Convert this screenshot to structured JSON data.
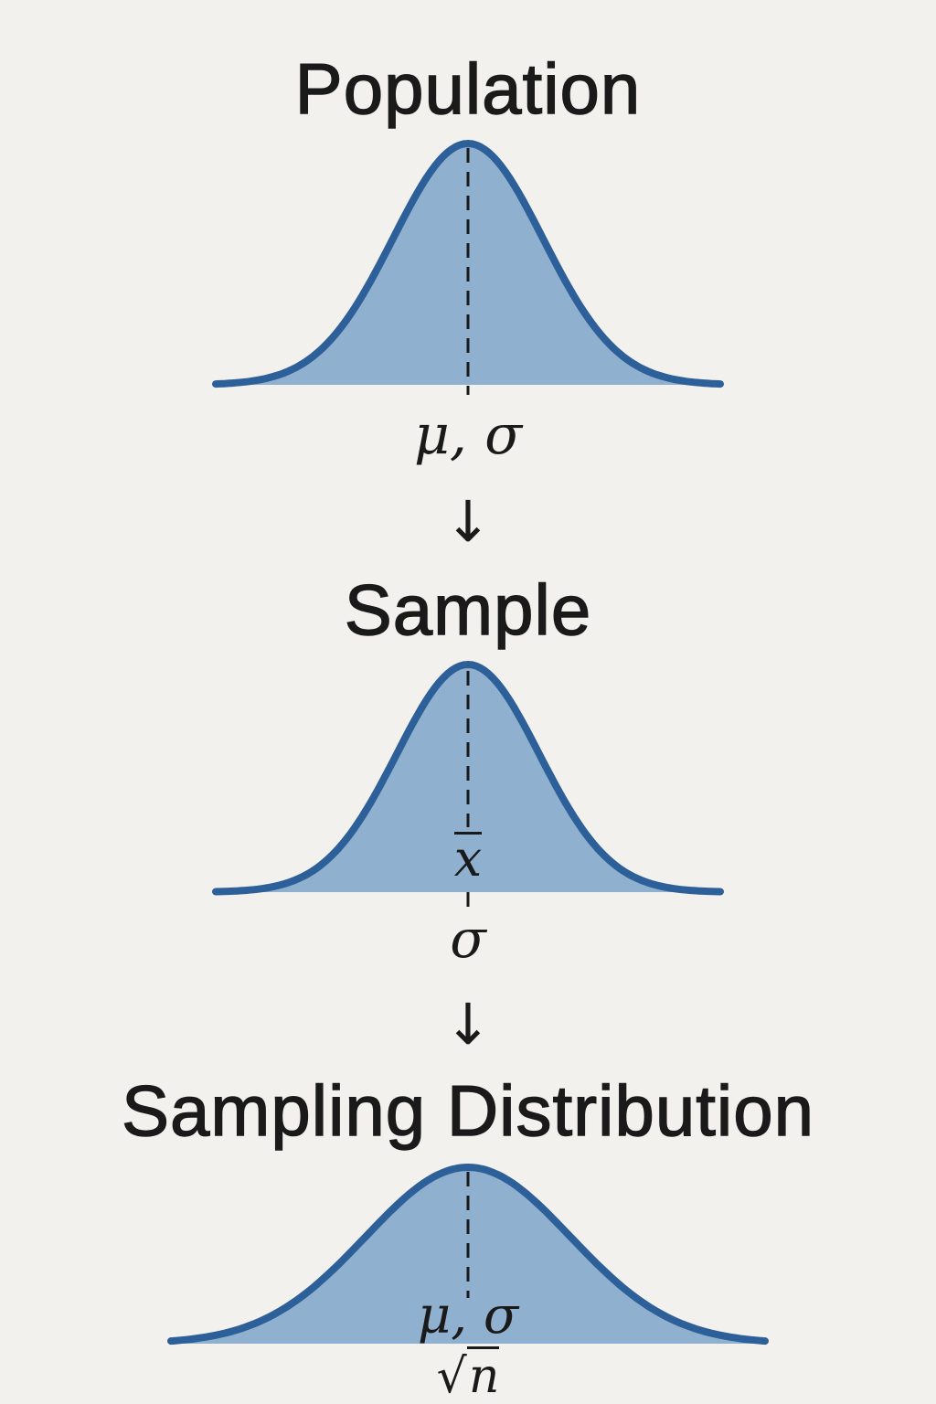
{
  "colors": {
    "background": "#f2f1ed",
    "curve_stroke": "#2d5f99",
    "curve_fill": "#8fb1cf",
    "text": "#1a1a1a",
    "dash_line": "#1a1a1a"
  },
  "population": {
    "title": "Population",
    "params": "μ, σ"
  },
  "arrow_1": "↓",
  "sample": {
    "title": "Sample",
    "mean_symbol": "x",
    "sd_symbol": "σ"
  },
  "arrow_2": "↓",
  "sampling_distribution": {
    "title": "Sampling Distribution",
    "numerator": "μ, σ",
    "denominator_radical": "√",
    "denominator_var": "n"
  }
}
